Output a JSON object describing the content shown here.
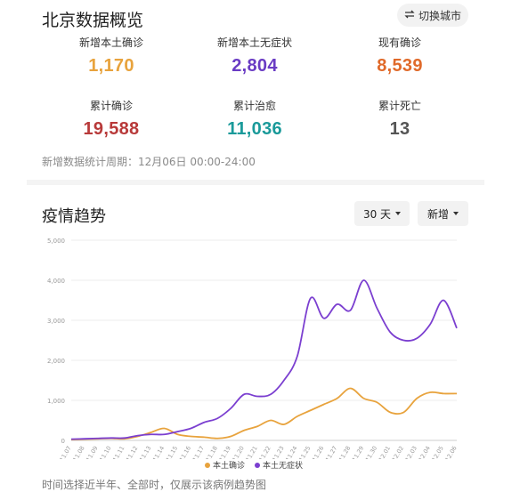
{
  "header": {
    "title": "北京数据概览",
    "switch_label": "切换城市"
  },
  "stats": [
    {
      "label": "新增本土确诊",
      "value": "1,170",
      "color": "#e8a33d"
    },
    {
      "label": "新增本土无症状",
      "value": "2,804",
      "color": "#6a3cc4"
    },
    {
      "label": "现有确诊",
      "value": "8,539",
      "color": "#e06a2a"
    },
    {
      "label": "累计确诊",
      "value": "19,588",
      "color": "#b83a3a"
    },
    {
      "label": "累计治愈",
      "value": "11,036",
      "color": "#1a9a9a"
    },
    {
      "label": "累计死亡",
      "value": "13",
      "color": "#555555"
    }
  ],
  "note": "新增数据统计周期：12月06日 00:00-24:00",
  "trend": {
    "title": "疫情趋势",
    "range_label": "30 天",
    "mode_label": "新增"
  },
  "footer": "时间选择近半年、全部时，仅展示该病例趋势图",
  "chart_data": {
    "type": "line",
    "x": [
      "11.07",
      "11.08",
      "11.09",
      "11.10",
      "11.11",
      "11.12",
      "11.13",
      "11.14",
      "11.15",
      "11.16",
      "11.17",
      "11.18",
      "11.19",
      "11.20",
      "11.21",
      "11.22",
      "11.23",
      "11.24",
      "11.25",
      "11.26",
      "11.27",
      "11.28",
      "11.29",
      "11.30",
      "12.01",
      "12.02",
      "12.03",
      "12.04",
      "12.05",
      "12.06"
    ],
    "yticks": [
      "0",
      "1,000",
      "2,000",
      "3,000",
      "4,000",
      "5,000"
    ],
    "ylim": [
      0,
      5000
    ],
    "series": [
      {
        "name": "本土确诊",
        "color": "#e8a33d",
        "values": [
          20,
          30,
          40,
          50,
          40,
          100,
          200,
          300,
          150,
          100,
          80,
          50,
          100,
          250,
          350,
          500,
          400,
          600,
          750,
          900,
          1050,
          1300,
          1050,
          950,
          700,
          700,
          1050,
          1200,
          1170,
          1170
        ]
      },
      {
        "name": "本土无症状",
        "color": "#7b3fd0",
        "values": [
          30,
          40,
          50,
          60,
          60,
          120,
          150,
          150,
          220,
          300,
          450,
          550,
          800,
          1150,
          1100,
          1150,
          1500,
          2100,
          3550,
          3050,
          3400,
          3250,
          4000,
          3300,
          2700,
          2500,
          2550,
          2900,
          3500,
          2804
        ]
      }
    ],
    "grid": true,
    "legend": "bottom-center"
  }
}
